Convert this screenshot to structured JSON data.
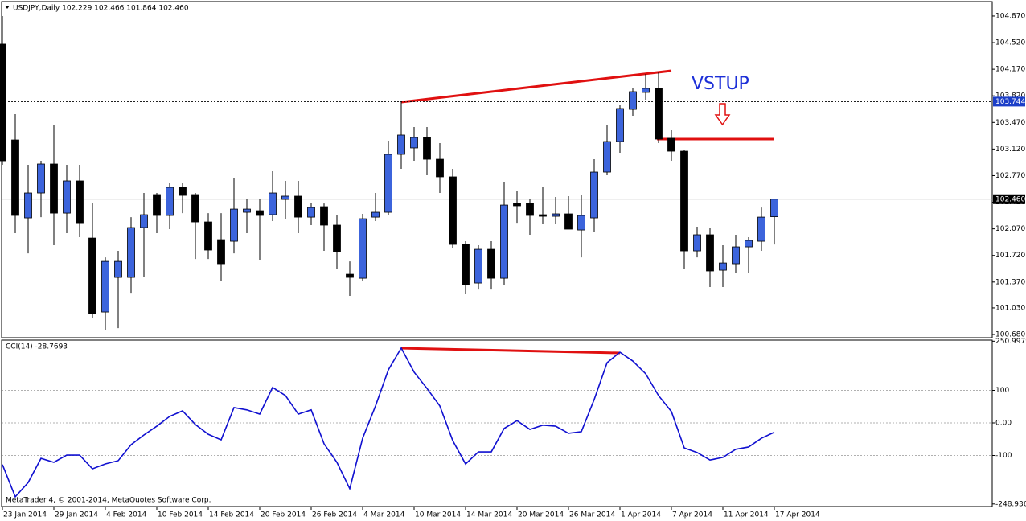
{
  "chart_data": [
    {
      "type": "candlestick",
      "title": "USDJPY,Daily  102.229 102.466 101.864 102.460",
      "annotation": "VSTUP",
      "footer": "MetaTrader 4, © 2001-2014, MetaQuotes Software Corp.",
      "up_color": "#3c64dc",
      "down_color": "#000000",
      "categories": [
        "23 Jan 2014",
        null,
        null,
        null,
        "29 Jan 2014",
        null,
        null,
        null,
        "4 Feb 2014",
        null,
        null,
        null,
        "10 Feb 2014",
        null,
        null,
        null,
        "14 Feb 2014",
        null,
        null,
        null,
        "20 Feb 2014",
        null,
        null,
        null,
        "26 Feb 2014",
        null,
        null,
        null,
        "4 Mar 2014",
        null,
        null,
        null,
        "10 Mar 2014",
        null,
        null,
        null,
        "14 Mar 2014",
        null,
        null,
        null,
        "20 Mar 2014",
        null,
        null,
        null,
        "26 Mar 2014",
        null,
        null,
        null,
        "1 Apr 2014",
        null,
        null,
        null,
        "7 Apr 2014",
        null,
        null,
        null,
        "11 Apr 2014",
        null,
        null,
        null,
        "17 Apr 2014"
      ],
      "open": [
        104.5,
        103.24,
        102.214,
        102.542,
        102.923,
        102.277,
        102.701,
        101.949,
        100.976,
        101.431,
        101.431,
        102.087,
        102.521,
        102.246,
        102.616,
        102.521,
        102.161,
        101.928,
        101.907,
        102.288,
        102.309,
        102.256,
        102.457,
        102.5,
        102.224,
        102.362,
        102.119,
        101.473,
        101.42,
        102.224,
        102.288,
        103.05,
        103.135,
        103.272,
        102.986,
        102.754,
        101.865,
        101.357,
        101.801,
        101.42,
        102.404,
        102.404,
        102.256,
        102.235,
        102.267,
        102.055,
        102.214,
        102.817,
        103.219,
        103.642,
        103.865,
        103.918,
        103.262,
        103.092,
        101.78,
        101.992,
        101.526,
        101.611,
        101.833,
        101.907,
        102.229
      ],
      "high": [
        104.87,
        103.579,
        102.912,
        102.965,
        103.431,
        102.912,
        102.912,
        102.415,
        101.695,
        101.78,
        102.224,
        102.542,
        102.542,
        102.669,
        102.669,
        102.542,
        102.277,
        102.277,
        102.732,
        102.457,
        102.457,
        102.828,
        102.701,
        102.701,
        102.415,
        102.404,
        102.246,
        101.642,
        102.267,
        102.542,
        103.23,
        103.738,
        103.41,
        103.41,
        103.198,
        102.859,
        101.907,
        101.854,
        101.907,
        102.69,
        102.563,
        102.457,
        102.627,
        102.489,
        102.5,
        102.51,
        102.986,
        103.441,
        103.706,
        103.918,
        104.108,
        104.129,
        103.367,
        103.113,
        102.098,
        102.087,
        101.854,
        101.992,
        101.96,
        102.351,
        102.466
      ],
      "low": [
        102.912,
        102.013,
        101.748,
        102.224,
        101.854,
        102.013,
        101.96,
        100.902,
        100.743,
        100.764,
        101.219,
        101.431,
        102.013,
        102.066,
        102.277,
        101.674,
        101.674,
        101.378,
        101.748,
        102.013,
        101.663,
        102.172,
        102.203,
        102.013,
        102.119,
        101.78,
        101.537,
        101.188,
        101.378,
        102.172,
        102.246,
        102.859,
        102.965,
        102.775,
        102.542,
        101.822,
        101.209,
        101.272,
        101.272,
        101.325,
        102.15,
        101.992,
        102.14,
        102.14,
        102.066,
        101.695,
        102.034,
        102.775,
        103.071,
        103.558,
        103.77,
        103.198,
        102.965,
        101.537,
        101.695,
        101.304,
        101.304,
        101.484,
        101.484,
        101.78,
        101.864
      ],
      "close": [
        102.965,
        102.246,
        102.542,
        102.923,
        102.277,
        102.701,
        102.15,
        100.955,
        101.642,
        101.642,
        102.087,
        102.256,
        102.246,
        102.616,
        102.51,
        102.161,
        101.791,
        101.611,
        102.33,
        102.33,
        102.246,
        102.542,
        102.5,
        102.224,
        102.351,
        102.119,
        101.769,
        101.431,
        102.203,
        102.288,
        103.05,
        103.304,
        103.272,
        102.986,
        102.754,
        101.865,
        101.336,
        101.801,
        101.42,
        102.383,
        102.373,
        102.246,
        102.235,
        102.267,
        102.066,
        102.246,
        102.817,
        103.219,
        103.653,
        103.875,
        103.918,
        103.251,
        103.092,
        101.78,
        101.992,
        101.516,
        101.621,
        101.833,
        101.918,
        102.224,
        102.46
      ],
      "reference_lines": [
        {
          "value": 103.744,
          "style": "dashed",
          "color": "#1c3fc8"
        },
        {
          "value": 102.46,
          "label": "102.460",
          "style": "solid",
          "color": "#000000"
        }
      ],
      "ylim": [
        100.638,
        105.06
      ],
      "yticks": [
        {
          "value": 104.87,
          "label": "104.870"
        },
        {
          "value": 104.52,
          "label": "104.520"
        },
        {
          "value": 104.17,
          "label": "104.170"
        },
        {
          "value": 103.82,
          "label": "103.820"
        },
        {
          "value": 103.47,
          "label": "103.470"
        },
        {
          "value": 103.12,
          "label": "103.120"
        },
        {
          "value": 102.77,
          "label": "102.770"
        },
        {
          "value": 102.42,
          "label": "102.420"
        },
        {
          "value": 102.07,
          "label": "102.070"
        },
        {
          "value": 101.72,
          "label": "101.720"
        },
        {
          "value": 101.37,
          "label": "101.370"
        },
        {
          "value": 101.03,
          "label": "101.030"
        },
        {
          "value": 100.68,
          "label": "100.680"
        }
      ]
    },
    {
      "type": "line",
      "title": "CCI(14) -28.7693",
      "color": "#1010d0",
      "values": [
        -128,
        -227,
        -183,
        -109,
        -121,
        -99,
        -99,
        -141,
        -126,
        -116,
        -67,
        -37,
        -10,
        20,
        37,
        -5,
        -35,
        -52,
        47,
        40,
        27,
        109,
        84,
        27,
        40,
        -64,
        -121,
        -202,
        -47,
        52,
        163,
        230,
        156,
        106,
        52,
        -54,
        -126,
        -89,
        -89,
        -17,
        7,
        -20,
        -7,
        -10,
        -32,
        -27,
        72,
        185,
        217,
        190,
        151,
        84,
        35,
        -77,
        -91,
        -114,
        -106,
        -81,
        -74,
        -47,
        -28.7693
      ],
      "ylim": [
        -256.8,
        254.3
      ],
      "yticks": [
        250.9979,
        100,
        {
          "value": 0,
          "label": "0.00"
        },
        -100,
        -248.9363
      ]
    }
  ]
}
